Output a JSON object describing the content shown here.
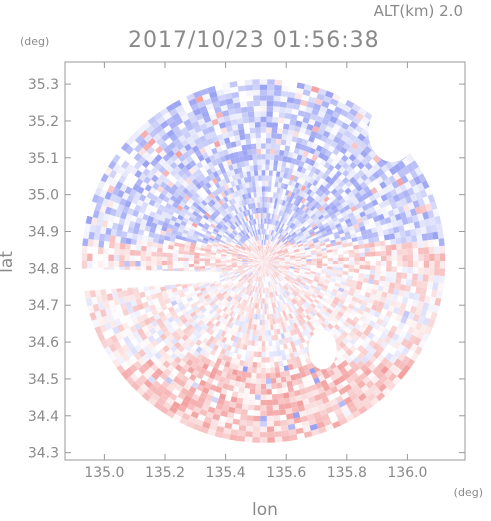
{
  "header": {
    "altitude_label": "ALT(km)  2.0",
    "timestamp": "2017/10/23 01:56:38",
    "y_unit": "(deg)",
    "x_unit": "(deg)"
  },
  "chart_data": {
    "type": "heatmap",
    "title": "2017/10/23 01:56:38",
    "xlabel": "lon",
    "ylabel": "lat",
    "x_unit": "(deg)",
    "y_unit": "(deg)",
    "xlim": [
      134.87,
      136.19
    ],
    "ylim": [
      34.28,
      35.36
    ],
    "x_ticks": [
      135.0,
      135.2,
      135.4,
      135.6,
      135.8,
      136.0
    ],
    "x_tick_labels": [
      "135.0",
      "135.2",
      "135.4",
      "135.6",
      "135.8",
      "136.0"
    ],
    "y_ticks": [
      34.3,
      34.4,
      34.5,
      34.6,
      34.7,
      34.8,
      34.9,
      35.0,
      35.1,
      35.2,
      35.3
    ],
    "y_tick_labels": [
      "34.3",
      "34.4",
      "34.5",
      "34.6",
      "34.7",
      "34.8",
      "34.9",
      "35.0",
      "35.1",
      "35.2",
      "35.3"
    ],
    "grid": false,
    "legend": "none",
    "radar_center": [
      135.525,
      34.82
    ],
    "radar_radius_deg": 0.6,
    "colors": {
      "negative": "#8f98f2",
      "negative_light": "#c8cdfa",
      "positive": "#f29898",
      "positive_light": "#fad0d0",
      "neutral": "#ffffff"
    },
    "regions": [
      {
        "lat_min": 34.87,
        "lat_max": 35.36,
        "mean_value": -0.45,
        "note": "northern half predominantly negative (blue)"
      },
      {
        "lat_min": 34.8,
        "lat_max": 34.87,
        "mean_value": 0.3,
        "note": "band just south of centre, positive (pink)"
      },
      {
        "lat_min": 34.55,
        "lat_max": 34.8,
        "mean_value": 0.15,
        "note": "mixed, mostly light pink with blue patches"
      },
      {
        "lat_min": 34.28,
        "lat_max": 34.55,
        "mean_value": 0.5,
        "note": "southern part predominantly positive (red)"
      }
    ]
  },
  "colors": {
    "frame": "#9a9a9a",
    "text": "#8a8a8a"
  }
}
